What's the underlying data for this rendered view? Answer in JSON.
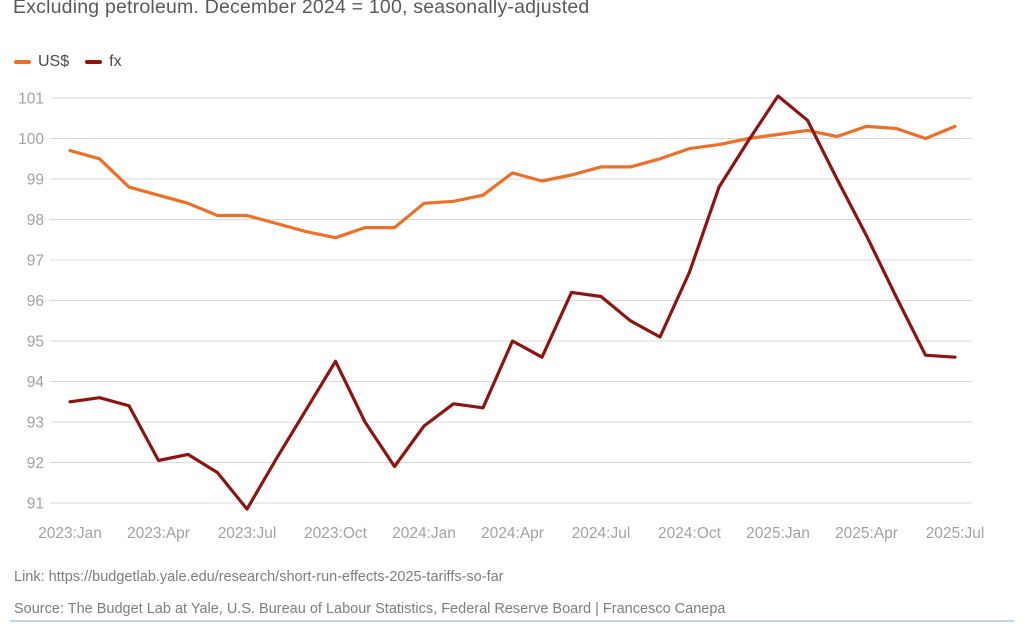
{
  "title": "Excluding petroleum. December 2024 = 100, seasonally-adjusted",
  "legend": [
    {
      "label": "US$",
      "color": "#ed7029"
    },
    {
      "label": "fx",
      "color": "#8c1511"
    }
  ],
  "footer": {
    "link": "Link: https://budgetlab.yale.edu/research/short-run-effects-2025-tariffs-so-far",
    "source": "Source: The Budget Lab at Yale, U.S. Bureau of Labour Statistics, Federal Reserve Board  | Francesco Canepa"
  },
  "chart_data": {
    "type": "line",
    "title": "Excluding petroleum. December 2024 = 100, seasonally-adjusted",
    "xlabel": "",
    "ylabel": "",
    "ylim": [
      91,
      101
    ],
    "y_ticks": [
      91,
      92,
      93,
      94,
      95,
      96,
      97,
      98,
      99,
      100,
      101
    ],
    "grid": "horizontal",
    "grid_color": "#d9d9d9",
    "axis_text_color": "#a2a2a2",
    "legend_position": "top-left",
    "x_tick_every": 3,
    "categories": [
      "2023:Jan",
      "2023:Feb",
      "2023:Mar",
      "2023:Apr",
      "2023:May",
      "2023:Jun",
      "2023:Jul",
      "2023:Aug",
      "2023:Sep",
      "2023:Oct",
      "2023:Nov",
      "2023:Dec",
      "2024:Jan",
      "2024:Feb",
      "2024:Mar",
      "2024:Apr",
      "2024:May",
      "2024:Jun",
      "2024:Jul",
      "2024:Aug",
      "2024:Sep",
      "2024:Oct",
      "2024:Nov",
      "2024:Dec",
      "2025:Jan",
      "2025:Feb",
      "2025:Mar",
      "2025:Apr",
      "2025:May",
      "2025:Jun",
      "2025:Jul"
    ],
    "series": [
      {
        "name": "US$",
        "color": "#ed7029",
        "values": [
          99.7,
          99.5,
          98.8,
          98.6,
          98.4,
          98.1,
          98.1,
          97.9,
          97.7,
          97.55,
          97.8,
          97.8,
          98.4,
          98.45,
          98.6,
          99.15,
          98.95,
          99.1,
          99.3,
          99.3,
          99.5,
          99.75,
          99.85,
          100.0,
          100.1,
          100.2,
          100.05,
          100.3,
          100.25,
          100.0,
          100.3
        ]
      },
      {
        "name": "fx",
        "color": "#8c1511",
        "values": [
          93.5,
          93.6,
          93.4,
          92.05,
          92.2,
          91.75,
          90.85,
          92.1,
          93.3,
          94.5,
          93.0,
          91.9,
          92.9,
          93.45,
          93.35,
          95.0,
          94.6,
          96.2,
          96.1,
          95.5,
          95.1,
          96.7,
          98.8,
          99.95,
          101.05,
          100.45,
          99.0,
          97.6,
          96.1,
          94.65,
          94.6
        ]
      }
    ]
  }
}
